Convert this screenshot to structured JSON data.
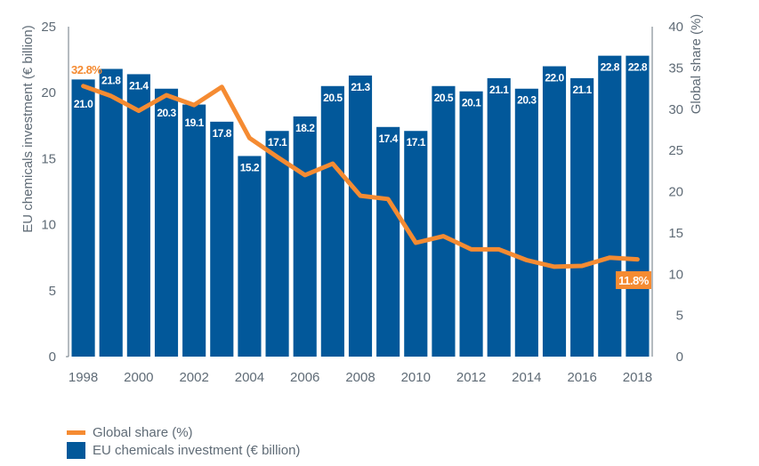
{
  "chart_data": {
    "type": "bar",
    "title": "",
    "categories": [
      "1998",
      "1999",
      "2000",
      "2001",
      "2002",
      "2003",
      "2004",
      "2005",
      "2006",
      "2007",
      "2008",
      "2009",
      "2010",
      "2011",
      "2012",
      "2013",
      "2014",
      "2015",
      "2016",
      "2017",
      "2018"
    ],
    "x_tick_labels": [
      "1998",
      "2000",
      "2002",
      "2004",
      "2006",
      "2008",
      "2010",
      "2012",
      "2014",
      "2016",
      "2018"
    ],
    "series": [
      {
        "name": "EU chemicals investment (€ billion)",
        "type": "bar",
        "axis": "left",
        "color": "#02589a",
        "values": [
          21.0,
          21.8,
          21.4,
          20.3,
          19.1,
          17.8,
          15.2,
          17.1,
          18.2,
          20.5,
          21.3,
          17.4,
          17.1,
          20.5,
          20.1,
          21.1,
          20.3,
          22.0,
          21.1,
          22.8,
          22.8
        ],
        "labels": [
          "21.0",
          "21.8",
          "21.4",
          "20.3",
          "19.1",
          "17.8",
          "15.2",
          "17.1",
          "18.2",
          "20.5",
          "21.3",
          "17.4",
          "17.1",
          "20.5",
          "20.1",
          "21.1",
          "20.3",
          "22.0",
          "21.1",
          "22.8",
          "22.8"
        ]
      },
      {
        "name": "Global share (%)",
        "type": "line",
        "axis": "right",
        "color": "#f58b32",
        "values": [
          32.8,
          31.6,
          29.8,
          31.7,
          30.5,
          32.7,
          26.5,
          24.2,
          22.0,
          23.4,
          19.5,
          19.1,
          13.8,
          14.6,
          13.0,
          13.0,
          11.7,
          10.9,
          11.0,
          12.0,
          11.8
        ],
        "annotations": [
          {
            "index": 0,
            "text": "32.8%"
          },
          {
            "index": 20,
            "text": "11.8%"
          }
        ]
      }
    ],
    "ylabel": "EU chemicals investment (€ billion)",
    "ylim": [
      0,
      25
    ],
    "yticks": [
      "0",
      "5",
      "10",
      "15",
      "20",
      "25"
    ],
    "y2label": "Global share (%)",
    "y2lim": [
      0,
      40
    ],
    "y2ticks": [
      "0",
      "5",
      "10",
      "15",
      "20",
      "25",
      "30",
      "35",
      "40"
    ],
    "grid": false,
    "legend": {
      "placement": "bottom-left",
      "entries": [
        "Global share (%)",
        "EU chemicals investment (€ billion)"
      ]
    }
  }
}
